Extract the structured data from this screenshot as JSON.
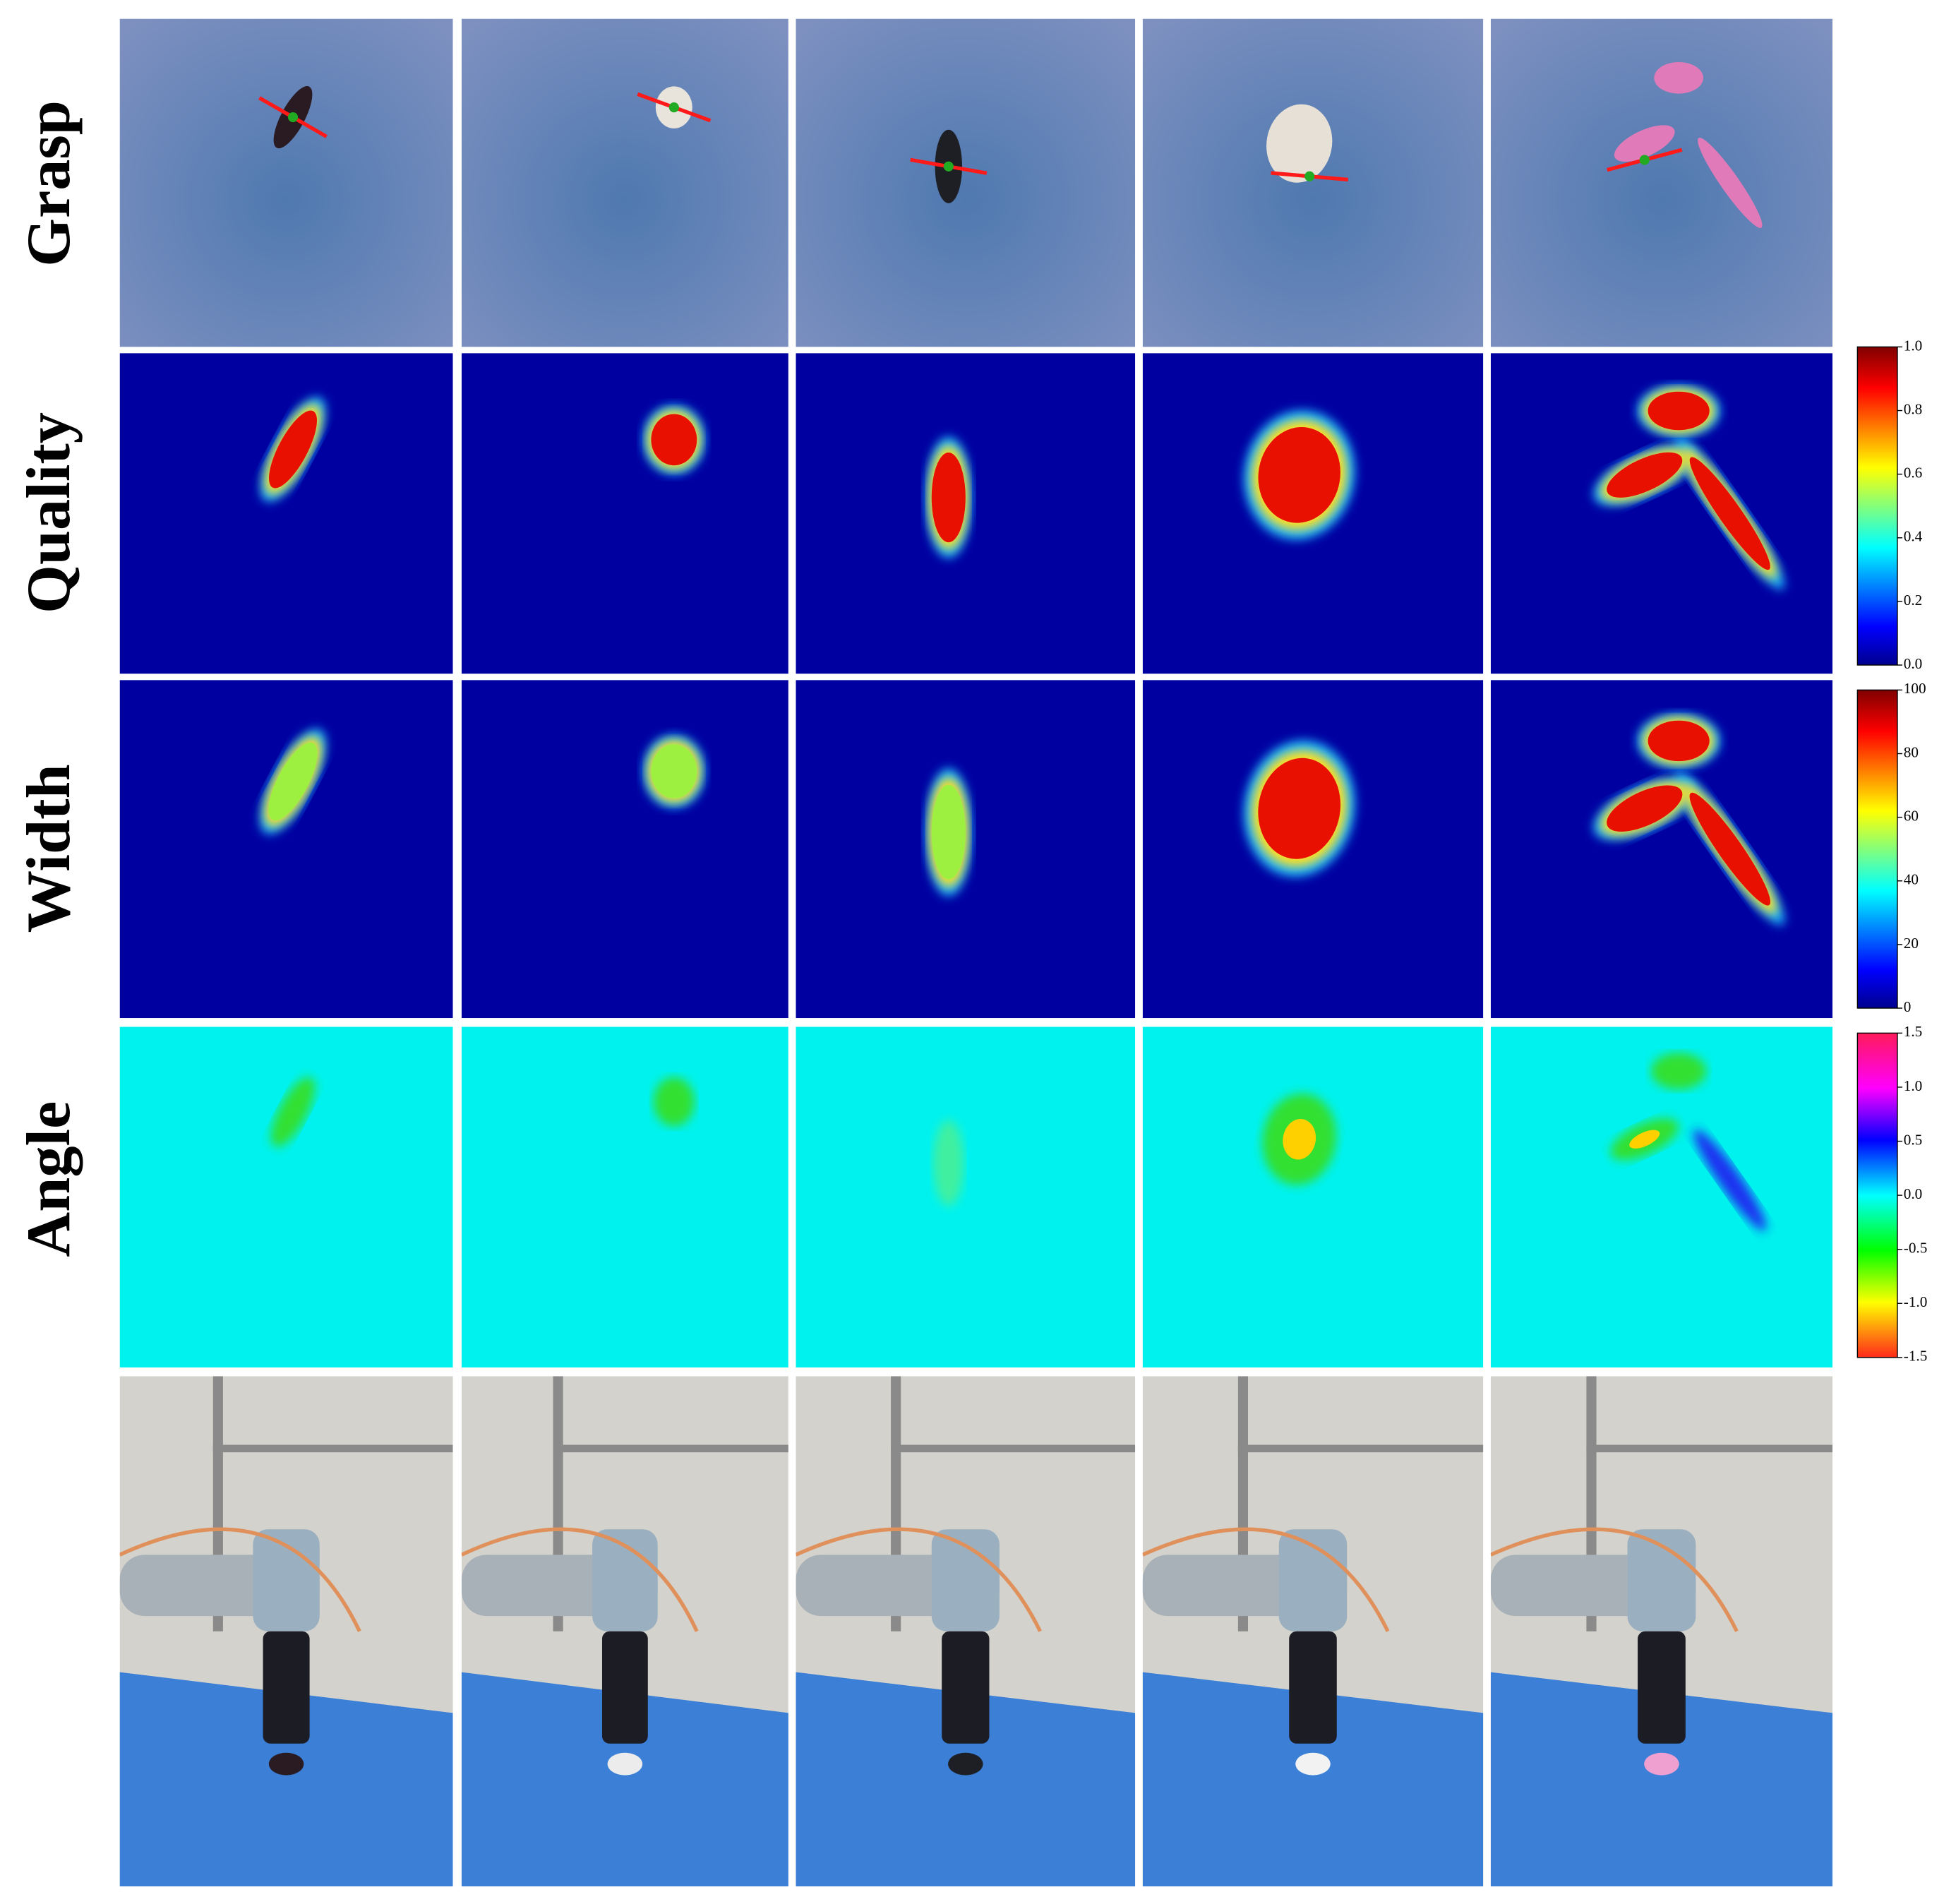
{
  "rows": [
    "Grasp",
    "Quality",
    "Width",
    "Angle"
  ],
  "colorbars": [
    {
      "ticks": [
        "1.0",
        "0.8",
        "0.6",
        "0.4",
        "0.2",
        "0.0"
      ]
    },
    {
      "ticks": [
        "100",
        "80",
        "60",
        "40",
        "20",
        "0"
      ]
    },
    {
      "ticks": [
        "1.5",
        "1.0",
        "0.5",
        "0.0",
        "-0.5",
        "-1.0",
        "-1.5"
      ]
    }
  ]
}
